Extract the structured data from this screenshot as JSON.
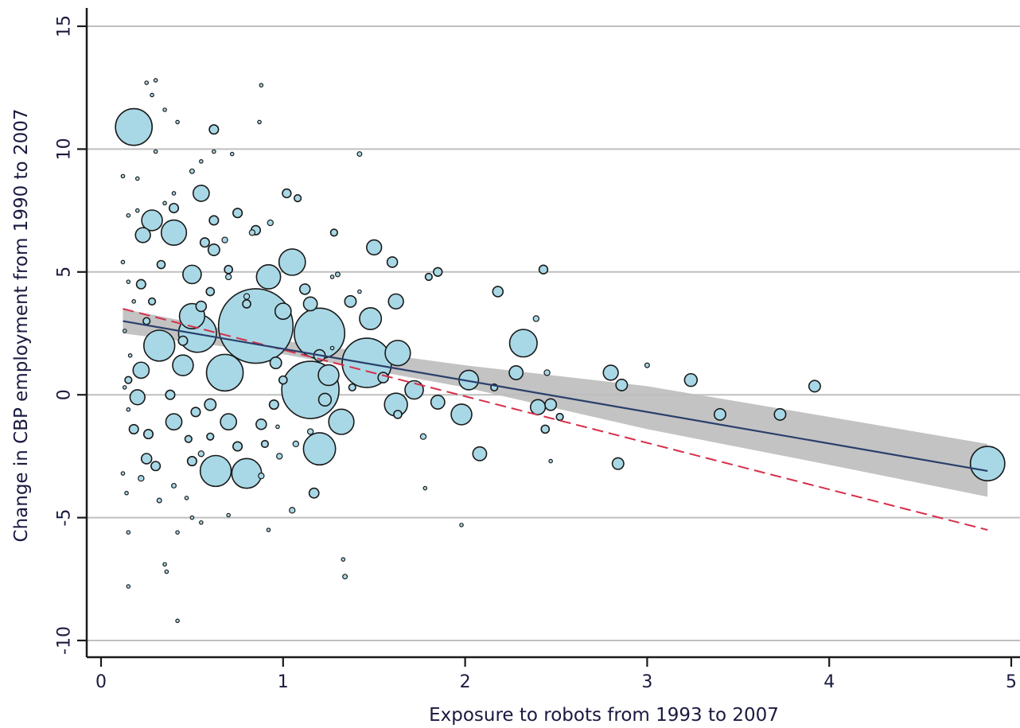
{
  "chart_data": {
    "type": "scatter",
    "title": "",
    "xlabel": "Exposure to robots from 1993 to 2007",
    "ylabel": "Change in CBP employment from 1990 to 2007",
    "xlim": [
      0,
      5
    ],
    "ylim": [
      -10,
      15
    ],
    "xticks": [
      0,
      1,
      2,
      3,
      4,
      5
    ],
    "yticks": [
      -10,
      -5,
      0,
      5,
      10,
      15
    ],
    "grid": "horizontal",
    "legend": "none",
    "colors": {
      "marker_fill": "#a8d8e6",
      "marker_stroke": "#1a1a1a",
      "fit_line": "#2a3f6b",
      "confidence_band": "#bdbdbd",
      "dashed_line": "#d62f4a",
      "grid": "#bfbfbf",
      "axis": "#1a1a1a",
      "text": "#1a1a40"
    },
    "fit_line": {
      "x": [
        0.12,
        4.87
      ],
      "y": [
        3.0,
        -3.1
      ]
    },
    "confidence_band": {
      "x": [
        0.12,
        1.0,
        2.0,
        3.0,
        4.0,
        4.87
      ],
      "lower": [
        2.5,
        1.65,
        0.3,
        -1.4,
        -2.85,
        -4.15
      ],
      "upper": [
        3.5,
        2.2,
        1.2,
        0.35,
        -0.9,
        -2.0
      ]
    },
    "dashed_line": {
      "x": [
        0.12,
        4.87
      ],
      "y": [
        3.5,
        -5.5
      ]
    },
    "series": [
      {
        "points": [
          {
            "x": 0.18,
            "y": 10.9,
            "s": 3.2
          },
          {
            "x": 0.85,
            "y": 2.8,
            "s": 6.5
          },
          {
            "x": 1.15,
            "y": 0.2,
            "s": 5.0
          },
          {
            "x": 1.2,
            "y": 2.5,
            "s": 4.4
          },
          {
            "x": 1.46,
            "y": 1.3,
            "s": 4.3
          },
          {
            "x": 4.87,
            "y": -2.8,
            "s": 3.0
          },
          {
            "x": 0.53,
            "y": 2.5,
            "s": 3.3
          },
          {
            "x": 0.68,
            "y": 0.9,
            "s": 3.2
          },
          {
            "x": 0.32,
            "y": 2.0,
            "s": 2.7
          },
          {
            "x": 0.63,
            "y": -3.1,
            "s": 2.7
          },
          {
            "x": 0.8,
            "y": -3.2,
            "s": 2.6
          },
          {
            "x": 1.2,
            "y": -2.2,
            "s": 2.8
          },
          {
            "x": 1.32,
            "y": -1.1,
            "s": 2.2
          },
          {
            "x": 1.63,
            "y": 1.7,
            "s": 2.2
          },
          {
            "x": 2.32,
            "y": 2.1,
            "s": 2.4
          },
          {
            "x": 0.5,
            "y": 3.2,
            "s": 2.2
          },
          {
            "x": 0.4,
            "y": 6.6,
            "s": 2.2
          },
          {
            "x": 0.92,
            "y": 4.8,
            "s": 2.1
          },
          {
            "x": 1.05,
            "y": 5.4,
            "s": 2.3
          },
          {
            "x": 0.28,
            "y": 7.1,
            "s": 1.8
          },
          {
            "x": 1.25,
            "y": 0.8,
            "s": 1.8
          },
          {
            "x": 0.45,
            "y": 1.2,
            "s": 1.8
          },
          {
            "x": 1.48,
            "y": 3.1,
            "s": 1.9
          },
          {
            "x": 1.62,
            "y": -0.4,
            "s": 2.0
          },
          {
            "x": 1.72,
            "y": 0.2,
            "s": 1.6
          },
          {
            "x": 2.02,
            "y": 0.6,
            "s": 1.7
          },
          {
            "x": 1.98,
            "y": -0.8,
            "s": 1.8
          },
          {
            "x": 0.5,
            "y": 4.9,
            "s": 1.6
          },
          {
            "x": 0.55,
            "y": 8.2,
            "s": 1.4
          },
          {
            "x": 0.23,
            "y": 6.5,
            "s": 1.3
          },
          {
            "x": 0.4,
            "y": -1.1,
            "s": 1.4
          },
          {
            "x": 0.22,
            "y": 1.0,
            "s": 1.4
          },
          {
            "x": 0.2,
            "y": -0.1,
            "s": 1.3
          },
          {
            "x": 0.7,
            "y": -1.1,
            "s": 1.4
          },
          {
            "x": 1.0,
            "y": 3.4,
            "s": 1.4
          },
          {
            "x": 1.15,
            "y": 3.7,
            "s": 1.2
          },
          {
            "x": 1.5,
            "y": 6.0,
            "s": 1.3
          },
          {
            "x": 1.62,
            "y": 3.8,
            "s": 1.3
          },
          {
            "x": 2.28,
            "y": 0.9,
            "s": 1.2
          },
          {
            "x": 2.08,
            "y": -2.4,
            "s": 1.2
          },
          {
            "x": 2.4,
            "y": -0.5,
            "s": 1.3
          },
          {
            "x": 2.47,
            "y": -0.4,
            "s": 1.0
          },
          {
            "x": 2.8,
            "y": 0.9,
            "s": 1.3
          },
          {
            "x": 2.86,
            "y": 0.4,
            "s": 1.0
          },
          {
            "x": 2.84,
            "y": -2.8,
            "s": 1.0
          },
          {
            "x": 3.24,
            "y": 0.6,
            "s": 1.1
          },
          {
            "x": 3.4,
            "y": -0.8,
            "s": 1.0
          },
          {
            "x": 3.73,
            "y": -0.8,
            "s": 1.0
          },
          {
            "x": 3.92,
            "y": 0.35,
            "s": 1.0
          },
          {
            "x": 2.18,
            "y": 4.2,
            "s": 0.9
          },
          {
            "x": 2.43,
            "y": 5.1,
            "s": 0.75
          },
          {
            "x": 1.85,
            "y": -0.3,
            "s": 1.2
          },
          {
            "x": 1.6,
            "y": 5.4,
            "s": 0.9
          },
          {
            "x": 1.37,
            "y": 3.8,
            "s": 1.0
          },
          {
            "x": 0.62,
            "y": 10.8,
            "s": 0.8
          },
          {
            "x": 1.02,
            "y": 8.2,
            "s": 0.75
          },
          {
            "x": 1.08,
            "y": 8.0,
            "s": 0.6
          },
          {
            "x": 1.17,
            "y": -4.0,
            "s": 0.85
          },
          {
            "x": 0.75,
            "y": 7.4,
            "s": 0.8
          },
          {
            "x": 0.85,
            "y": 6.7,
            "s": 0.8
          },
          {
            "x": 1.85,
            "y": 5.0,
            "s": 0.75
          },
          {
            "x": 1.8,
            "y": 4.8,
            "s": 0.6
          },
          {
            "x": 1.28,
            "y": 6.6,
            "s": 0.6
          },
          {
            "x": 1.23,
            "y": -0.2,
            "s": 1.1
          },
          {
            "x": 0.62,
            "y": 5.9,
            "s": 1.0
          },
          {
            "x": 0.4,
            "y": 7.6,
            "s": 0.8
          },
          {
            "x": 0.22,
            "y": 4.5,
            "s": 0.8
          },
          {
            "x": 0.28,
            "y": 3.8,
            "s": 0.6
          },
          {
            "x": 0.62,
            "y": 7.1,
            "s": 0.8
          },
          {
            "x": 0.57,
            "y": 6.2,
            "s": 0.8
          },
          {
            "x": 0.75,
            "y": -2.1,
            "s": 0.8
          },
          {
            "x": 0.3,
            "y": -2.9,
            "s": 0.8
          },
          {
            "x": 0.25,
            "y": -2.6,
            "s": 0.9
          },
          {
            "x": 0.18,
            "y": -1.4,
            "s": 0.8
          },
          {
            "x": 0.26,
            "y": -1.6,
            "s": 0.8
          },
          {
            "x": 0.5,
            "y": -2.7,
            "s": 0.8
          },
          {
            "x": 0.52,
            "y": -0.7,
            "s": 0.8
          },
          {
            "x": 0.6,
            "y": -0.4,
            "s": 1.0
          },
          {
            "x": 0.38,
            "y": 0.0,
            "s": 0.8
          },
          {
            "x": 0.88,
            "y": -1.2,
            "s": 0.9
          },
          {
            "x": 0.95,
            "y": -0.4,
            "s": 0.8
          },
          {
            "x": 0.96,
            "y": 1.3,
            "s": 1.0
          },
          {
            "x": 1.12,
            "y": 4.3,
            "s": 0.9
          },
          {
            "x": 0.55,
            "y": 3.6,
            "s": 0.9
          },
          {
            "x": 0.6,
            "y": 4.2,
            "s": 0.7
          },
          {
            "x": 0.7,
            "y": 5.1,
            "s": 0.7
          },
          {
            "x": 0.33,
            "y": 5.3,
            "s": 0.7
          },
          {
            "x": 0.45,
            "y": 2.2,
            "s": 0.8
          },
          {
            "x": 0.8,
            "y": 3.7,
            "s": 0.7
          },
          {
            "x": 1.2,
            "y": 1.6,
            "s": 1.0
          },
          {
            "x": 1.55,
            "y": 0.7,
            "s": 0.9
          },
          {
            "x": 1.63,
            "y": -0.8,
            "s": 0.7
          },
          {
            "x": 2.16,
            "y": 0.3,
            "s": 0.6
          },
          {
            "x": 2.44,
            "y": -1.4,
            "s": 0.7
          },
          {
            "x": 2.52,
            "y": -0.9,
            "s": 0.6
          },
          {
            "x": 2.39,
            "y": 3.1,
            "s": 0.5
          },
          {
            "x": 2.45,
            "y": 0.9,
            "s": 0.5
          },
          {
            "x": 3.0,
            "y": 1.2,
            "s": 0.4
          },
          {
            "x": 1.77,
            "y": -1.7,
            "s": 0.5
          },
          {
            "x": 1.34,
            "y": -7.4,
            "s": 0.4
          },
          {
            "x": 1.05,
            "y": -4.7,
            "s": 0.5
          },
          {
            "x": 0.9,
            "y": -2.0,
            "s": 0.6
          },
          {
            "x": 1.0,
            "y": 0.6,
            "s": 0.7
          },
          {
            "x": 1.3,
            "y": 4.9,
            "s": 0.4
          },
          {
            "x": 0.93,
            "y": 7.0,
            "s": 0.5
          },
          {
            "x": 0.83,
            "y": 6.6,
            "s": 0.5
          },
          {
            "x": 0.68,
            "y": 6.3,
            "s": 0.5
          },
          {
            "x": 0.8,
            "y": 4.0,
            "s": 0.5
          },
          {
            "x": 0.7,
            "y": 4.8,
            "s": 0.5
          },
          {
            "x": 0.25,
            "y": 3.0,
            "s": 0.6
          },
          {
            "x": 0.15,
            "y": 0.6,
            "s": 0.6
          },
          {
            "x": 0.48,
            "y": -1.8,
            "s": 0.6
          },
          {
            "x": 0.6,
            "y": -1.7,
            "s": 0.6
          },
          {
            "x": 0.55,
            "y": -2.4,
            "s": 0.5
          },
          {
            "x": 0.22,
            "y": -3.4,
            "s": 0.5
          },
          {
            "x": 0.32,
            "y": -4.3,
            "s": 0.4
          },
          {
            "x": 0.4,
            "y": -3.7,
            "s": 0.4
          },
          {
            "x": 0.98,
            "y": -2.5,
            "s": 0.5
          },
          {
            "x": 0.88,
            "y": -3.3,
            "s": 0.5
          },
          {
            "x": 1.15,
            "y": -1.5,
            "s": 0.5
          },
          {
            "x": 1.07,
            "y": -2.0,
            "s": 0.5
          },
          {
            "x": 1.38,
            "y": 0.3,
            "s": 0.6
          },
          {
            "x": 0.72,
            "y": 9.8,
            "s": 0.3
          },
          {
            "x": 0.87,
            "y": 11.1,
            "s": 0.3
          },
          {
            "x": 0.88,
            "y": 12.6,
            "s": 0.3
          },
          {
            "x": 0.62,
            "y": 9.9,
            "s": 0.3
          },
          {
            "x": 0.5,
            "y": 9.1,
            "s": 0.4
          },
          {
            "x": 0.55,
            "y": 9.5,
            "s": 0.3
          },
          {
            "x": 0.42,
            "y": 11.1,
            "s": 0.3
          },
          {
            "x": 0.35,
            "y": 11.6,
            "s": 0.3
          },
          {
            "x": 0.3,
            "y": 12.8,
            "s": 0.3
          },
          {
            "x": 0.25,
            "y": 12.7,
            "s": 0.3
          },
          {
            "x": 0.28,
            "y": 12.2,
            "s": 0.3
          },
          {
            "x": 0.12,
            "y": 8.9,
            "s": 0.3
          },
          {
            "x": 0.2,
            "y": 8.8,
            "s": 0.3
          },
          {
            "x": 0.3,
            "y": 9.9,
            "s": 0.3
          },
          {
            "x": 1.42,
            "y": 9.8,
            "s": 0.4
          },
          {
            "x": 0.4,
            "y": 8.2,
            "s": 0.3
          },
          {
            "x": 0.15,
            "y": 7.3,
            "s": 0.3
          },
          {
            "x": 0.2,
            "y": 7.5,
            "s": 0.3
          },
          {
            "x": 0.35,
            "y": 7.8,
            "s": 0.3
          },
          {
            "x": 0.12,
            "y": 5.4,
            "s": 0.3
          },
          {
            "x": 0.15,
            "y": 4.6,
            "s": 0.3
          },
          {
            "x": 0.18,
            "y": 3.8,
            "s": 0.3
          },
          {
            "x": 0.13,
            "y": 2.6,
            "s": 0.3
          },
          {
            "x": 0.16,
            "y": 1.6,
            "s": 0.3
          },
          {
            "x": 0.13,
            "y": 0.3,
            "s": 0.3
          },
          {
            "x": 0.15,
            "y": -0.6,
            "s": 0.3
          },
          {
            "x": 0.12,
            "y": -3.2,
            "s": 0.3
          },
          {
            "x": 0.14,
            "y": -4.0,
            "s": 0.3
          },
          {
            "x": 0.15,
            "y": -5.6,
            "s": 0.3
          },
          {
            "x": 0.15,
            "y": -7.8,
            "s": 0.3
          },
          {
            "x": 0.42,
            "y": -9.2,
            "s": 0.3
          },
          {
            "x": 0.35,
            "y": -6.9,
            "s": 0.3
          },
          {
            "x": 0.36,
            "y": -7.2,
            "s": 0.3
          },
          {
            "x": 0.42,
            "y": -5.6,
            "s": 0.3
          },
          {
            "x": 0.5,
            "y": -5.0,
            "s": 0.3
          },
          {
            "x": 0.47,
            "y": -4.2,
            "s": 0.3
          },
          {
            "x": 0.55,
            "y": -5.2,
            "s": 0.3
          },
          {
            "x": 0.7,
            "y": -4.9,
            "s": 0.3
          },
          {
            "x": 0.92,
            "y": -5.5,
            "s": 0.3
          },
          {
            "x": 1.33,
            "y": -6.7,
            "s": 0.3
          },
          {
            "x": 1.78,
            "y": -3.8,
            "s": 0.3
          },
          {
            "x": 1.98,
            "y": -5.3,
            "s": 0.3
          },
          {
            "x": 2.47,
            "y": -2.7,
            "s": 0.3
          },
          {
            "x": 1.27,
            "y": 4.8,
            "s": 0.3
          },
          {
            "x": 1.42,
            "y": 4.2,
            "s": 0.3
          },
          {
            "x": 1.27,
            "y": 1.9,
            "s": 0.3
          },
          {
            "x": 0.97,
            "y": -1.3,
            "s": 0.3
          }
        ]
      }
    ]
  }
}
